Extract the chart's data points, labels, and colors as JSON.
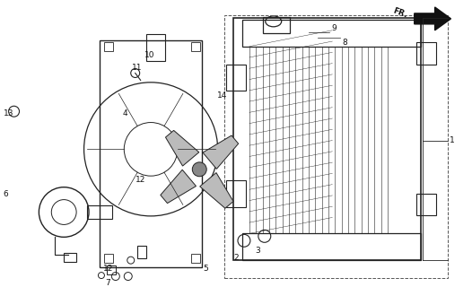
{
  "bg_color": "#ffffff",
  "line_color": "#222222",
  "dashed_color": "#555555",
  "fan_blade_color": "#bbbbbb",
  "fill_color": "#888888"
}
